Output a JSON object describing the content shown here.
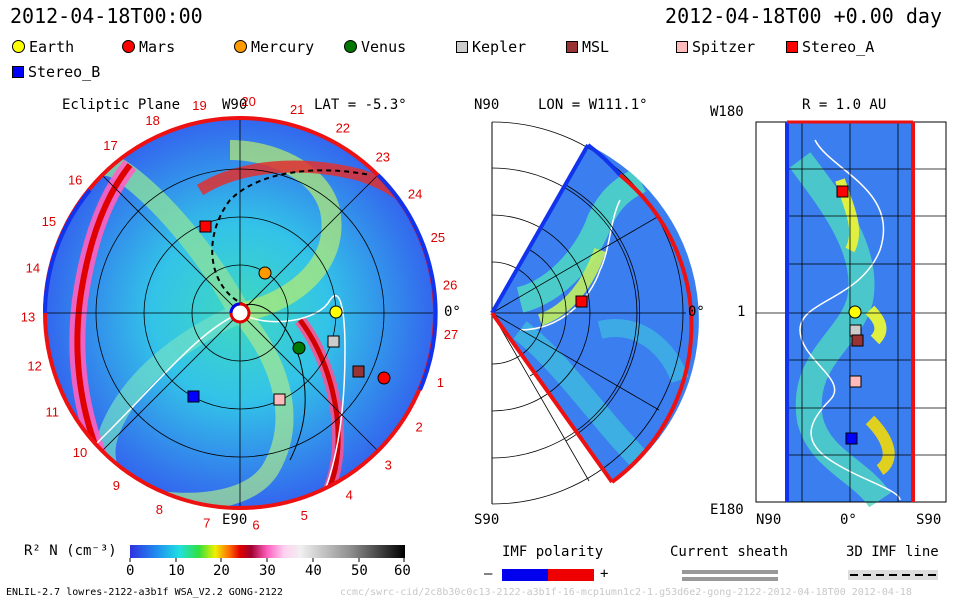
{
  "header": {
    "left_timestamp": "2012-04-18T00:00",
    "right_timestamp": "2012-04-18T00 +0.00 day"
  },
  "legend": [
    {
      "name": "Earth",
      "color": "#ffff00",
      "shape": "circle"
    },
    {
      "name": "Mars",
      "color": "#ff0000",
      "shape": "circle"
    },
    {
      "name": "Mercury",
      "color": "#ff9900",
      "shape": "circle"
    },
    {
      "name": "Venus",
      "color": "#007700",
      "shape": "circle"
    },
    {
      "name": "Kepler",
      "color": "#cccccc",
      "shape": "square"
    },
    {
      "name": "MSL",
      "color": "#993333",
      "shape": "square"
    },
    {
      "name": "Spitzer",
      "color": "#ffbbbb",
      "shape": "square"
    },
    {
      "name": "Stereo_A",
      "color": "#ff0000",
      "shape": "square"
    },
    {
      "name": "Stereo_B",
      "color": "#0000ff",
      "shape": "square"
    }
  ],
  "ecliptic": {
    "title": "Ecliptic Plane",
    "top_label": "W90",
    "bottom_label": "E90",
    "right_label": "0°",
    "lat_label": "LAT = -5.3°",
    "carrington_numbers": [
      "19",
      "20",
      "21",
      "22",
      "23",
      "24",
      "25",
      "26",
      "27",
      "1",
      "2",
      "3",
      "4",
      "5",
      "6",
      "7",
      "8",
      "9",
      "10",
      "11",
      "12",
      "13",
      "14",
      "15",
      "16",
      "17",
      "18"
    ]
  },
  "meridional": {
    "lon_label": "LON = W111.1°",
    "top_label": "N90",
    "bottom_label": "S90",
    "right_label": "0°"
  },
  "radial": {
    "r_label": "R = 1.0 AU",
    "top_left": "W180",
    "bottom_left": "E180",
    "mid_left": "1",
    "x_left": "N90",
    "x_mid": "0°",
    "x_right": "S90"
  },
  "colorbar": {
    "label": "R² N (cm⁻³)",
    "ticks": [
      "0",
      "10",
      "20",
      "30",
      "40",
      "50",
      "60"
    ]
  },
  "imf": {
    "label": "IMF polarity",
    "minus": "–",
    "plus": "+"
  },
  "current_sheath": {
    "label": "Current sheath"
  },
  "imf_line": {
    "label": "3D IMF line"
  },
  "footer": {
    "left": "ENLIL-2.7 lowres-2122-a3b1f WSA_V2.2 GONG-2122",
    "right": "ccmc/swrc-cid/2c8b30c0c13-2122-a3b1f-16-mcp1umn1c2-1.g53d6e2-gong-2122-2012-04-18T00   2012-04-18"
  }
}
